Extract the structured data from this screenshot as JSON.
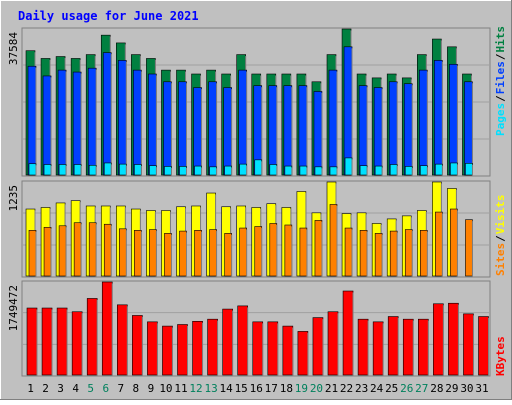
{
  "chart_data": [
    {
      "type": "bar",
      "title": "Daily usage for June 2021",
      "panel": "hits-files-pages",
      "x": [
        1,
        2,
        3,
        4,
        5,
        6,
        7,
        8,
        9,
        10,
        11,
        12,
        13,
        14,
        15,
        16,
        17,
        18,
        19,
        20,
        21,
        22,
        23,
        24,
        25,
        26,
        27,
        28,
        29,
        30,
        31
      ],
      "x_highlight": [
        5,
        6,
        12,
        13,
        19,
        20,
        26,
        27
      ],
      "ymax_label": "37584",
      "ylim": [
        0,
        37584
      ],
      "grid": true,
      "ylabel_parts": [
        "Pages",
        "/",
        "Files",
        "/",
        "Hits"
      ],
      "series": [
        {
          "name": "Hits",
          "values": [
            32000,
            30000,
            30500,
            30000,
            31000,
            36000,
            34000,
            31000,
            30000,
            27000,
            27000,
            26000,
            27000,
            26000,
            31000,
            26000,
            26000,
            26000,
            26000,
            24000,
            31000,
            37584,
            26000,
            25000,
            26000,
            25000,
            31000,
            35000,
            33000,
            26000,
            0
          ]
        },
        {
          "name": "Files",
          "values": [
            28000,
            25500,
            27000,
            26500,
            27500,
            31500,
            29500,
            27000,
            26000,
            24000,
            24000,
            22500,
            24000,
            22500,
            27000,
            23000,
            23000,
            23000,
            23000,
            21500,
            27000,
            33000,
            23000,
            22500,
            24000,
            23500,
            27000,
            29500,
            28500,
            24000,
            0
          ]
        },
        {
          "name": "Pages",
          "values": [
            2900,
            2700,
            2700,
            2700,
            2500,
            3100,
            2800,
            2700,
            2400,
            2200,
            2200,
            2300,
            2100,
            2300,
            2800,
            3900,
            2700,
            2300,
            2300,
            2100,
            2100,
            4400,
            2400,
            2300,
            2700,
            2200,
            2400,
            2800,
            3100,
            3000,
            0
          ]
        }
      ]
    },
    {
      "type": "bar",
      "panel": "visits-sites",
      "x": [
        1,
        2,
        3,
        4,
        5,
        6,
        7,
        8,
        9,
        10,
        11,
        12,
        13,
        14,
        15,
        16,
        17,
        18,
        19,
        20,
        21,
        22,
        23,
        24,
        25,
        26,
        27,
        28,
        29,
        30,
        31
      ],
      "ymax_label": "1235",
      "ylim": [
        0,
        1235
      ],
      "grid": true,
      "ylabel_parts": [
        "Sites",
        "/",
        "Visits"
      ],
      "series": [
        {
          "name": "Visits",
          "values": [
            880,
            900,
            960,
            990,
            920,
            920,
            920,
            880,
            860,
            860,
            910,
            920,
            1090,
            910,
            920,
            900,
            950,
            900,
            1110,
            830,
            1235,
            820,
            830,
            690,
            750,
            790,
            860,
            1235,
            1150,
            0,
            0
          ]
        },
        {
          "name": "Sites",
          "values": [
            600,
            640,
            660,
            700,
            700,
            680,
            620,
            600,
            610,
            560,
            590,
            600,
            610,
            560,
            630,
            650,
            690,
            670,
            630,
            730,
            940,
            630,
            600,
            560,
            590,
            610,
            600,
            840,
            880,
            740,
            0
          ]
        }
      ]
    },
    {
      "type": "bar",
      "panel": "kbytes",
      "x": [
        1,
        2,
        3,
        4,
        5,
        6,
        7,
        8,
        9,
        10,
        11,
        12,
        13,
        14,
        15,
        16,
        17,
        18,
        19,
        20,
        21,
        22,
        23,
        24,
        25,
        26,
        27,
        28,
        29,
        30,
        31
      ],
      "ymax_label": "1749472",
      "ylim": [
        0,
        1749472
      ],
      "grid": true,
      "ylabel_parts": [
        "KBytes"
      ],
      "series": [
        {
          "name": "KBytes",
          "values": [
            1260000,
            1260000,
            1260000,
            1190000,
            1440000,
            1749472,
            1320000,
            1120000,
            1000000,
            920000,
            950000,
            1010000,
            1050000,
            1240000,
            1300000,
            1000000,
            1000000,
            920000,
            820000,
            1080000,
            1190000,
            1580000,
            1050000,
            1000000,
            1100000,
            1050000,
            1050000,
            1340000,
            1350000,
            1150000,
            1100000
          ]
        }
      ]
    }
  ],
  "colors": {
    "background": "#c0c0c0",
    "plot_bg": "#c0c0c0",
    "title": "#0000ff",
    "axis_text": "#000000",
    "weekend_text": "#00805c",
    "hits": "#008040",
    "files": "#0040ff",
    "pages": "#00e0ff",
    "visits": "#ffff00",
    "sites": "#ff8000",
    "kbytes": "#ff0000",
    "slash": "#000000"
  }
}
